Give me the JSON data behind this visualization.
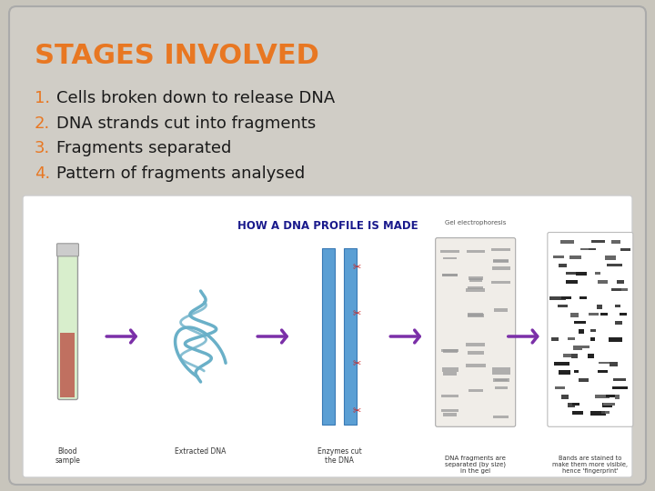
{
  "background_outer": "#c8c5bc",
  "background_inner": "#d0cdc6",
  "title": "STAGES INVOLVED",
  "title_color": "#e87722",
  "title_fontsize": 22,
  "title_bold": true,
  "items": [
    "Cells broken down to release DNA",
    "DNA strands cut into fragments",
    "Fragments separated",
    "Pattern of fragments analysed"
  ],
  "item_numbers": [
    "1.",
    "2.",
    "3.",
    "4."
  ],
  "item_color": "#1a1a1a",
  "item_fontsize": 13,
  "number_color": "#e87722",
  "figsize": [
    7.2,
    5.4
  ],
  "dpi": 100
}
